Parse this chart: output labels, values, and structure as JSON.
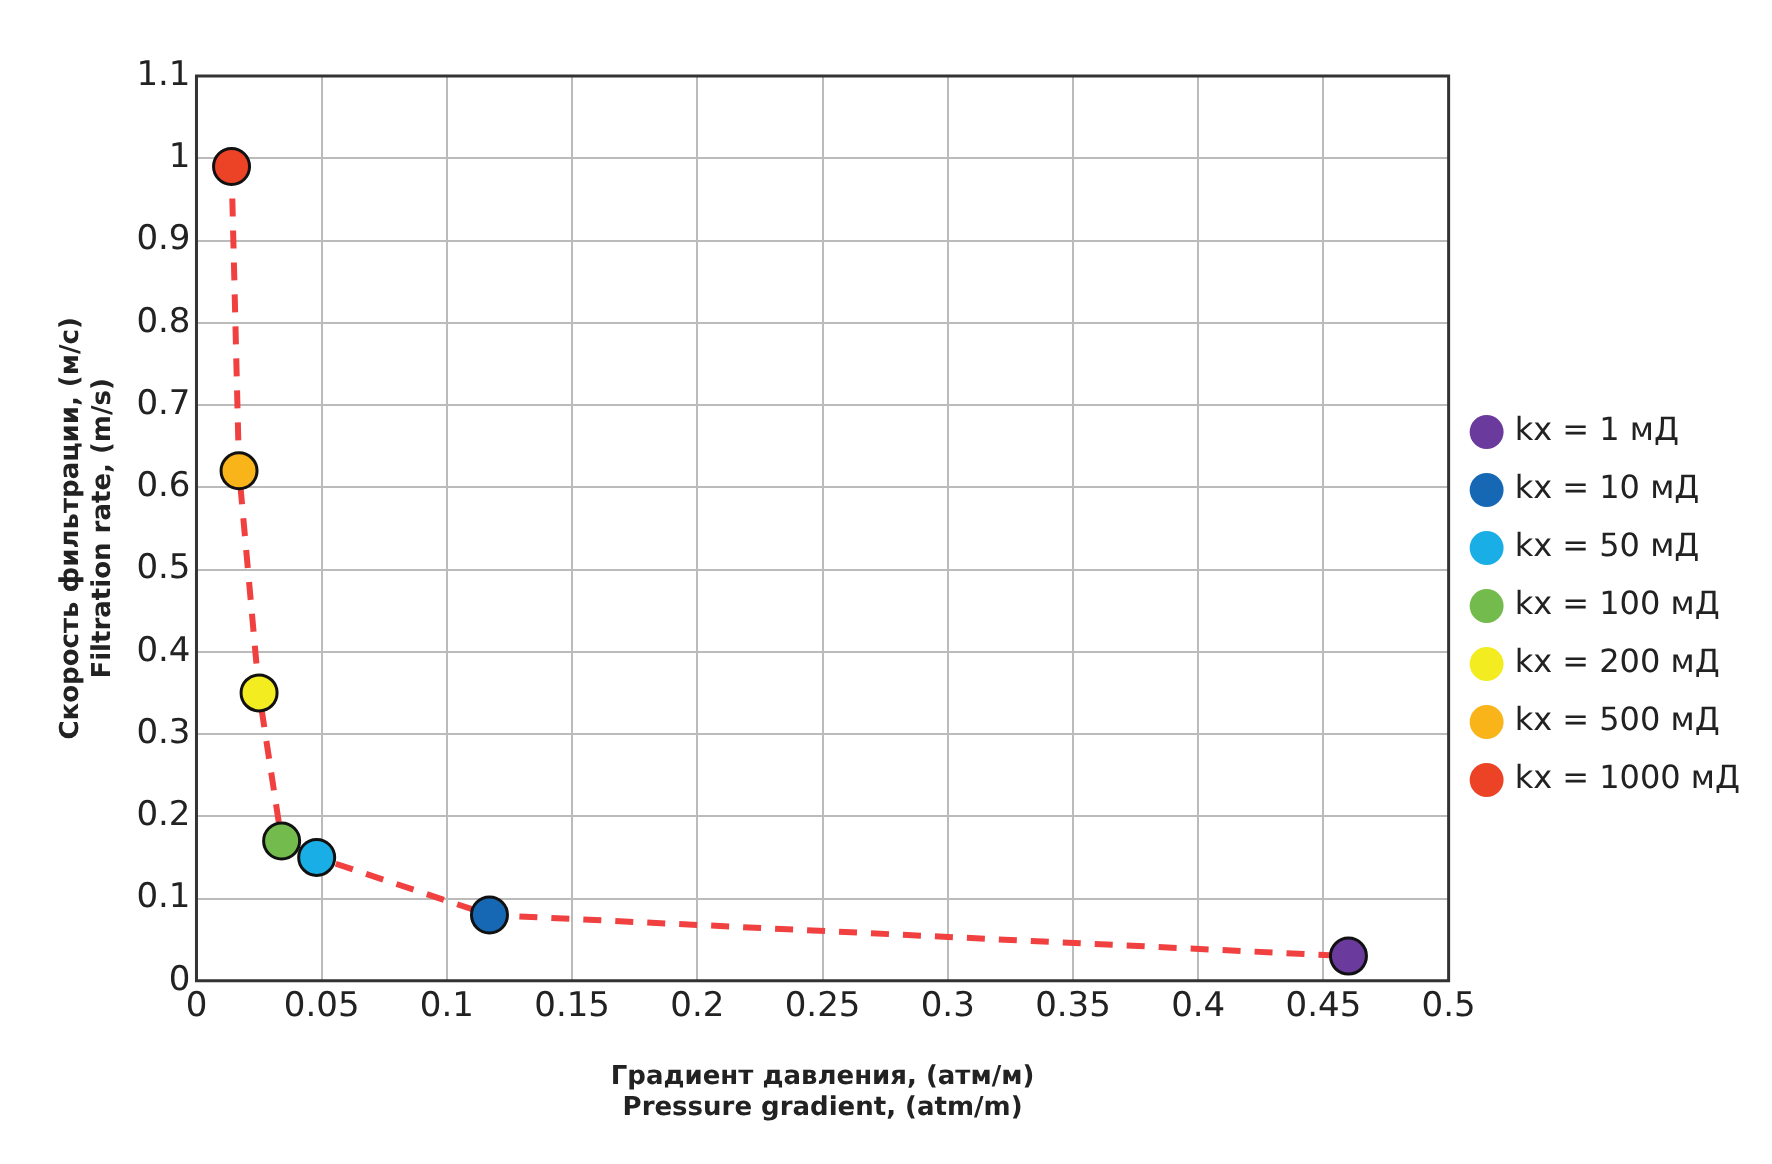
{
  "chart_data": {
    "type": "scatter",
    "xlabel": "Градиент давления, (атм/м)\nPressure gradient, (atm/m)",
    "ylabel": "Скорость фильтрации, (м/с)\nFiltration rate, (m/s)",
    "xlim": [
      0,
      0.5
    ],
    "xticks": [
      0,
      0.05,
      0.1,
      0.15,
      0.2,
      0.25,
      0.3,
      0.35,
      0.4,
      0.45,
      0.5
    ],
    "ylim": [
      0,
      1.1
    ],
    "yticks": [
      0,
      0.1,
      0.2,
      0.3,
      0.4,
      0.5,
      0.6,
      0.7,
      0.8,
      0.9,
      1,
      1.1
    ],
    "grid": true,
    "legend": "right",
    "marker": "circle",
    "series": [
      {
        "type": "line",
        "color": "#f04040",
        "line_style": "dashed",
        "marker": "none",
        "x": [
          0.014,
          0.017,
          0.025,
          0.034,
          0.048,
          0.117,
          0.46
        ],
        "values": [
          0.99,
          0.62,
          0.35,
          0.17,
          0.15,
          0.08,
          0.03
        ]
      },
      {
        "name": "kx = 1 мД",
        "color": "#6a3a9c",
        "x": [
          0.46
        ],
        "values": [
          0.03
        ]
      },
      {
        "name": "kx = 10 мД",
        "color": "#1668b4",
        "x": [
          0.117
        ],
        "values": [
          0.08
        ]
      },
      {
        "name": "kx = 50 мД",
        "color": "#1aaee6",
        "x": [
          0.048
        ],
        "values": [
          0.15
        ]
      },
      {
        "name": "kx = 100 мД",
        "color": "#72bb4c",
        "x": [
          0.034
        ],
        "values": [
          0.17
        ]
      },
      {
        "name": "kx = 200 мД",
        "color": "#f2ec20",
        "x": [
          0.025
        ],
        "values": [
          0.35
        ]
      },
      {
        "name": "kx = 500 мД",
        "color": "#f8b418",
        "x": [
          0.017
        ],
        "values": [
          0.62
        ]
      },
      {
        "name": "kx = 1000 мД",
        "color": "#ec4226",
        "x": [
          0.014
        ],
        "values": [
          0.99
        ]
      }
    ]
  }
}
